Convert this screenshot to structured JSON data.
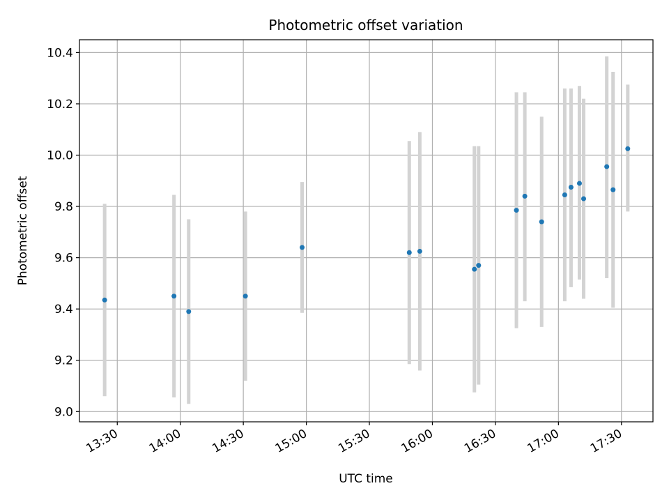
{
  "chart_data": {
    "type": "scatter",
    "title": "Photometric offset variation",
    "xlabel": "UTC time",
    "ylabel": "Photometric offset",
    "xlim": [
      "13:12",
      "17:45"
    ],
    "ylim": [
      8.96,
      10.45
    ],
    "grid": true,
    "x_ticks": [
      "13:30",
      "14:00",
      "14:30",
      "15:00",
      "15:30",
      "16:00",
      "16:30",
      "17:00",
      "17:30"
    ],
    "y_ticks": [
      9.0,
      9.2,
      9.4,
      9.6,
      9.8,
      10.0,
      10.2,
      10.4
    ],
    "x_tick_labels": [
      "13:30",
      "14:00",
      "14:30",
      "15:00",
      "15:30",
      "16:00",
      "16:30",
      "17:00",
      "17:30"
    ],
    "y_tick_labels": [
      "9.0",
      "9.2",
      "9.4",
      "9.6",
      "9.8",
      "10.0",
      "10.2",
      "10.4"
    ],
    "marker_color": "#1f77b4",
    "errorbar_color": "#d3d3d3",
    "points": [
      {
        "x": "13:24",
        "y": 9.435,
        "lo": 9.06,
        "hi": 9.81
      },
      {
        "x": "13:57",
        "y": 9.45,
        "lo": 9.055,
        "hi": 9.845
      },
      {
        "x": "14:04",
        "y": 9.39,
        "lo": 9.03,
        "hi": 9.75
      },
      {
        "x": "14:31",
        "y": 9.45,
        "lo": 9.12,
        "hi": 9.78
      },
      {
        "x": "14:58",
        "y": 9.64,
        "lo": 9.385,
        "hi": 9.895
      },
      {
        "x": "15:49",
        "y": 9.62,
        "lo": 9.185,
        "hi": 10.055
      },
      {
        "x": "15:54",
        "y": 9.625,
        "lo": 9.16,
        "hi": 10.09
      },
      {
        "x": "16:20",
        "y": 9.555,
        "lo": 9.075,
        "hi": 10.035
      },
      {
        "x": "16:22",
        "y": 9.57,
        "lo": 9.105,
        "hi": 10.035
      },
      {
        "x": "16:40",
        "y": 9.785,
        "lo": 9.325,
        "hi": 10.245
      },
      {
        "x": "16:44",
        "y": 9.84,
        "lo": 9.43,
        "hi": 10.245
      },
      {
        "x": "16:52",
        "y": 9.74,
        "lo": 9.33,
        "hi": 10.15
      },
      {
        "x": "17:03",
        "y": 9.845,
        "lo": 9.43,
        "hi": 10.26
      },
      {
        "x": "17:06",
        "y": 9.875,
        "lo": 9.485,
        "hi": 10.26
      },
      {
        "x": "17:10",
        "y": 9.89,
        "lo": 9.515,
        "hi": 10.27
      },
      {
        "x": "17:12",
        "y": 9.83,
        "lo": 9.44,
        "hi": 10.22
      },
      {
        "x": "17:23",
        "y": 9.955,
        "lo": 9.52,
        "hi": 10.385
      },
      {
        "x": "17:26",
        "y": 9.865,
        "lo": 9.405,
        "hi": 10.325
      },
      {
        "x": "17:33",
        "y": 10.025,
        "lo": 9.78,
        "hi": 10.275
      }
    ]
  }
}
